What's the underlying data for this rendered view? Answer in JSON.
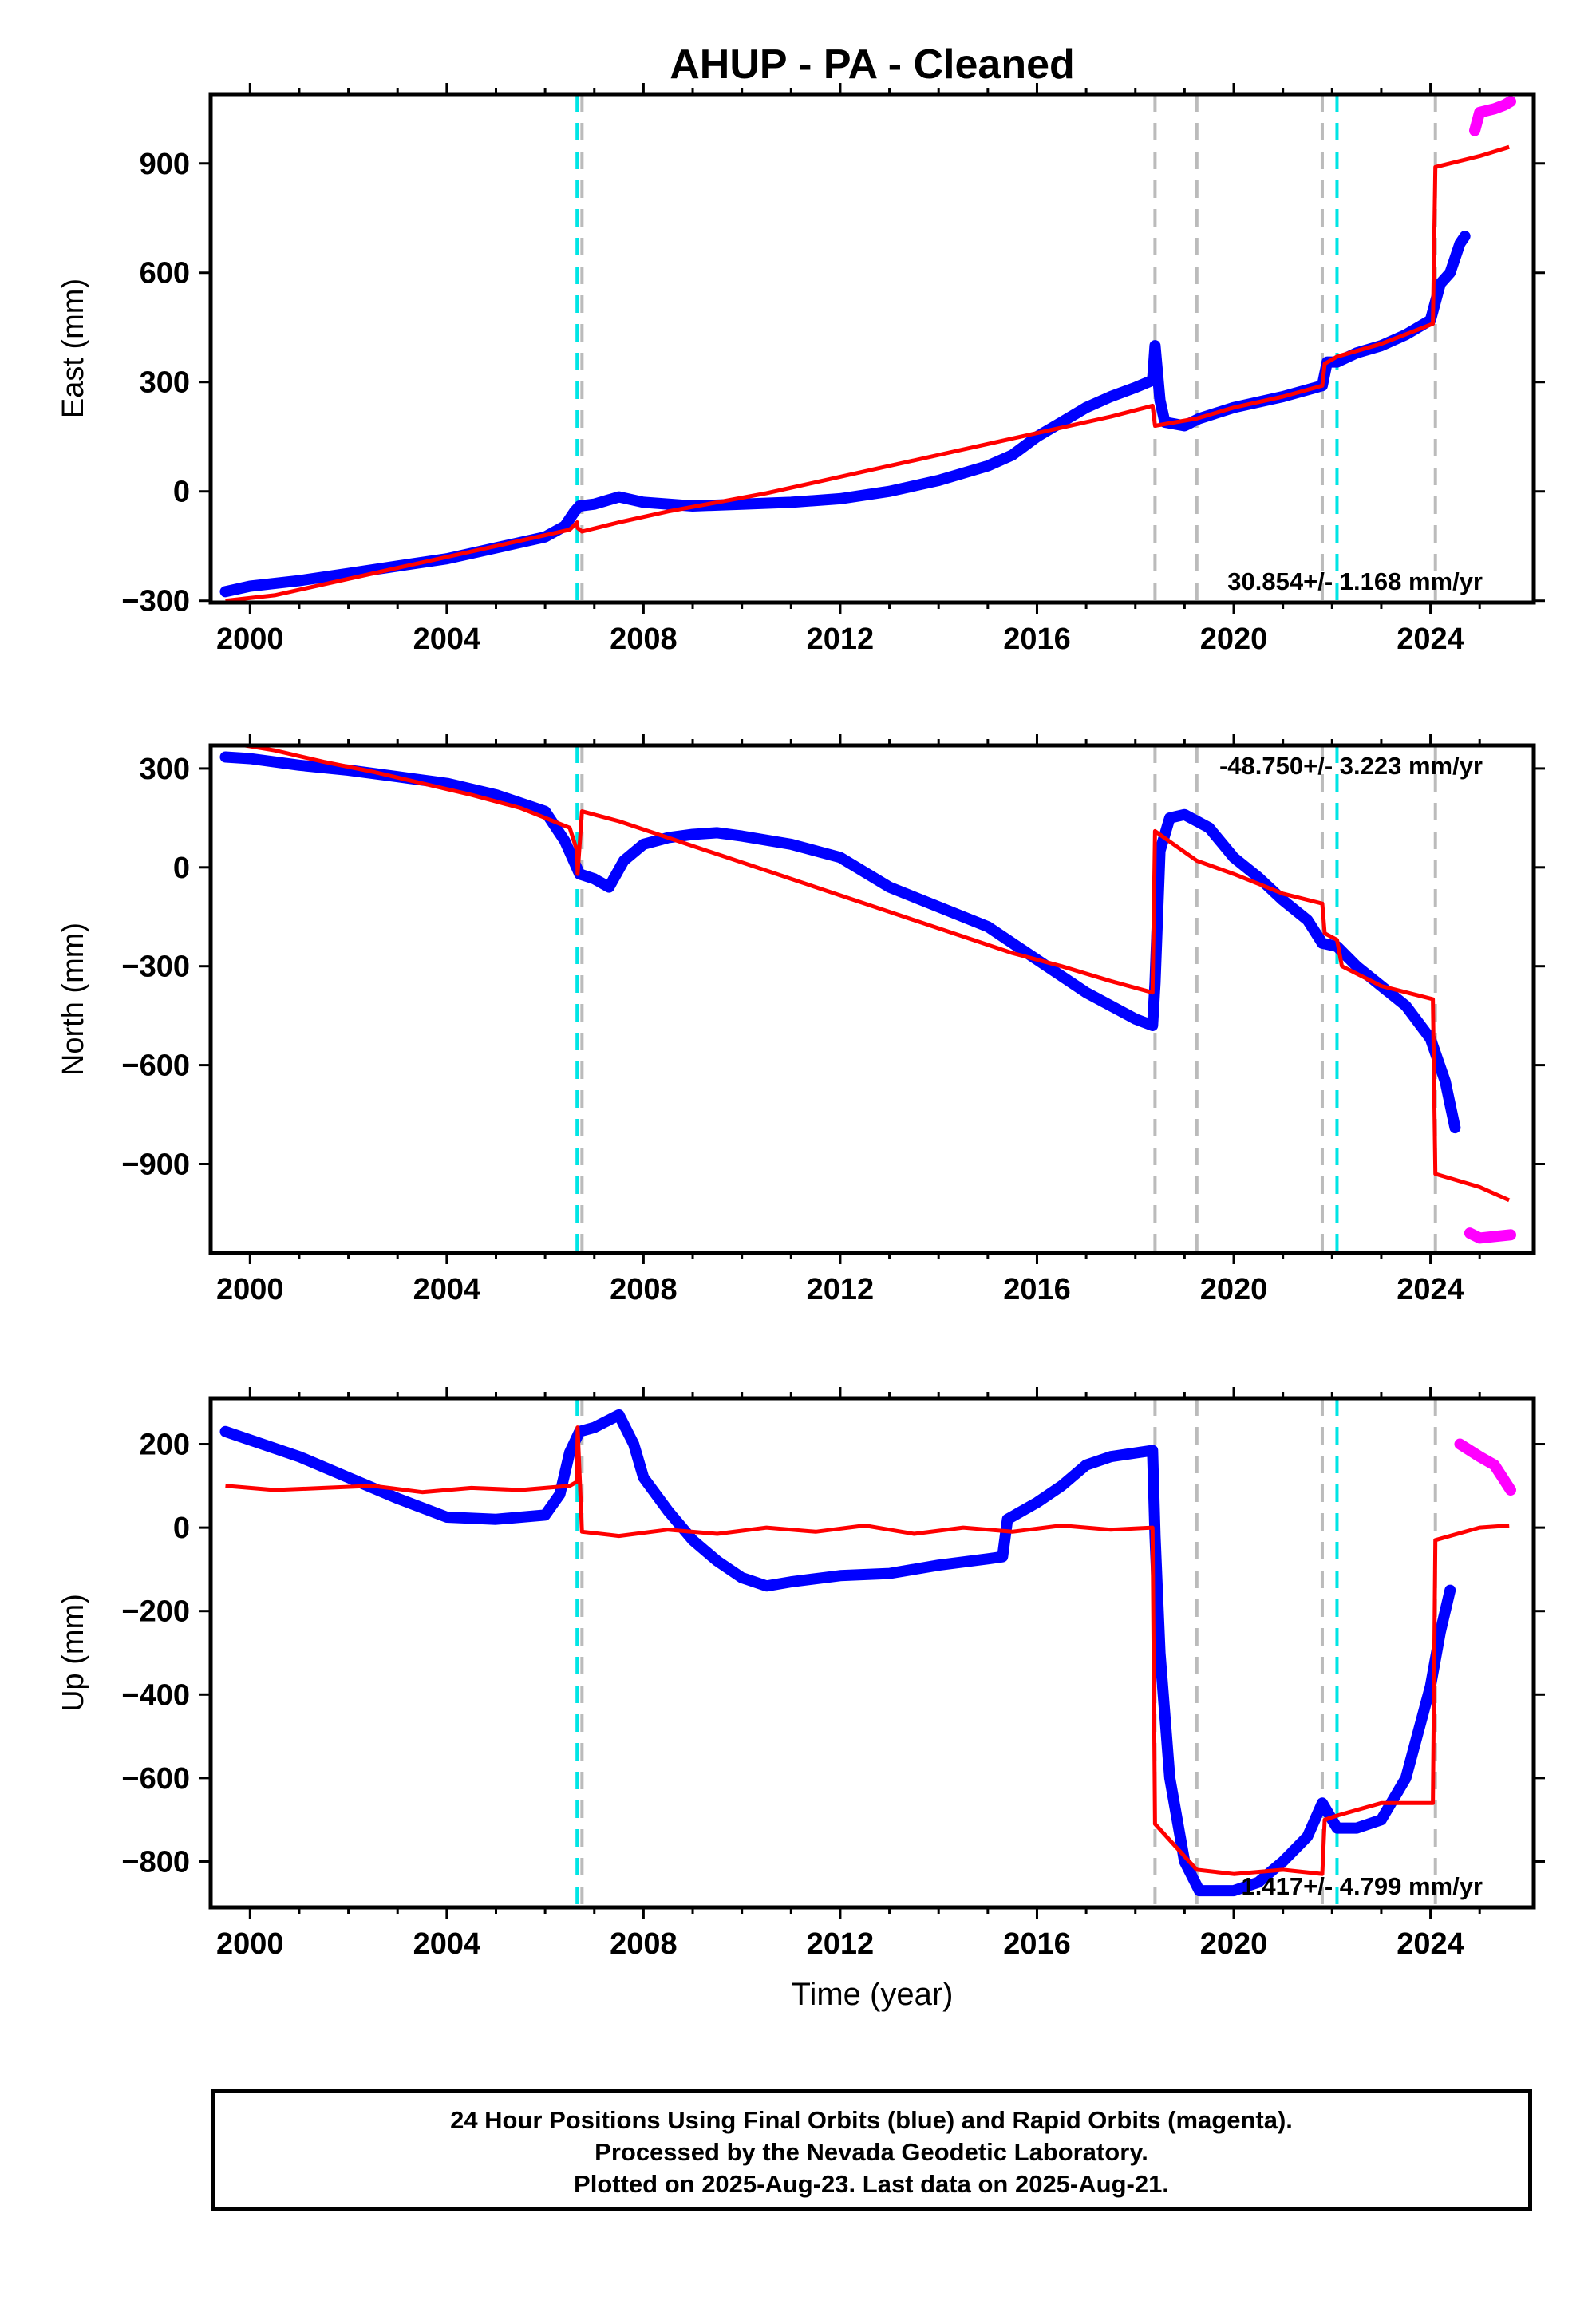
{
  "title": "AHUP  - PA - Cleaned",
  "xlabel": "Time (year)",
  "footer": {
    "line1": "24 Hour Positions Using Final Orbits (blue) and Rapid Orbits (magenta).",
    "line2": "Processed by the Nevada Geodetic Laboratory.",
    "line3": "Plotted on 2025-Aug-23. Last data on 2025-Aug-21."
  },
  "colors": {
    "final": "#0000ff",
    "rapid": "#ff00ff",
    "model": "#ff0000",
    "equipment": "#bbbbbb",
    "earthquake": "#00e5e5"
  },
  "chart_data": [
    {
      "type": "line",
      "panel": "east",
      "ylabel": "East (mm)",
      "xlim": [
        1999.2,
        2026.1
      ],
      "ylim": [
        -305,
        1090
      ],
      "xticks": [
        2000,
        2004,
        2008,
        2012,
        2016,
        2020,
        2024
      ],
      "yticks": [
        -300,
        0,
        300,
        600,
        900
      ],
      "rate": "30.854+/- 1.168 mm/yr",
      "rate_position": "bottom-right",
      "equipment_changes": [
        2006.75,
        2018.4,
        2019.25,
        2021.8,
        2024.1
      ],
      "earthquakes": [
        2006.65,
        2022.1
      ],
      "final_orbits": [
        [
          1999.5,
          -275
        ],
        [
          2000,
          -260
        ],
        [
          2001,
          -245
        ],
        [
          2002,
          -225
        ],
        [
          2003,
          -205
        ],
        [
          2004,
          -185
        ],
        [
          2005,
          -155
        ],
        [
          2006,
          -125
        ],
        [
          2006.4,
          -95
        ],
        [
          2006.6,
          -55
        ],
        [
          2006.7,
          -40
        ],
        [
          2007,
          -35
        ],
        [
          2007.5,
          -15
        ],
        [
          2008,
          -30
        ],
        [
          2009,
          -40
        ],
        [
          2010,
          -35
        ],
        [
          2011,
          -30
        ],
        [
          2012,
          -20
        ],
        [
          2013,
          0
        ],
        [
          2014,
          30
        ],
        [
          2015,
          70
        ],
        [
          2015.5,
          100
        ],
        [
          2016,
          150
        ],
        [
          2016.5,
          190
        ],
        [
          2017,
          230
        ],
        [
          2017.5,
          260
        ],
        [
          2018,
          285
        ],
        [
          2018.35,
          305
        ],
        [
          2018.4,
          400
        ],
        [
          2018.5,
          250
        ],
        [
          2018.6,
          190
        ],
        [
          2019,
          180
        ],
        [
          2019.3,
          200
        ],
        [
          2020,
          230
        ],
        [
          2021,
          260
        ],
        [
          2021.8,
          290
        ],
        [
          2021.9,
          355
        ],
        [
          2022.1,
          355
        ],
        [
          2022.5,
          380
        ],
        [
          2023,
          400
        ],
        [
          2023.5,
          430
        ],
        [
          2024,
          470
        ],
        [
          2024.2,
          570
        ],
        [
          2024.4,
          600
        ],
        [
          2024.6,
          680
        ],
        [
          2024.7,
          700
        ]
      ],
      "rapid_orbits": [
        [
          2024.9,
          990
        ],
        [
          2025,
          1040
        ],
        [
          2025.3,
          1050
        ],
        [
          2025.5,
          1060
        ],
        [
          2025.63,
          1070
        ]
      ],
      "model": [
        [
          1999.5,
          -300
        ],
        [
          2000.5,
          -285
        ],
        [
          2001.5,
          -255
        ],
        [
          2002.5,
          -225
        ],
        [
          2003.5,
          -195
        ],
        [
          2004.5,
          -165
        ],
        [
          2005.5,
          -135
        ],
        [
          2006.5,
          -105
        ],
        [
          2006.65,
          -85
        ],
        [
          2006.66,
          -100
        ],
        [
          2006.75,
          -110
        ],
        [
          2007.5,
          -85
        ],
        [
          2008.5,
          -55
        ],
        [
          2009.5,
          -30
        ],
        [
          2010.5,
          -5
        ],
        [
          2011.5,
          25
        ],
        [
          2012.5,
          55
        ],
        [
          2013.5,
          85
        ],
        [
          2014.5,
          115
        ],
        [
          2015.5,
          145
        ],
        [
          2016.5,
          175
        ],
        [
          2017.5,
          205
        ],
        [
          2018.35,
          235
        ],
        [
          2018.4,
          180
        ],
        [
          2019.25,
          200
        ],
        [
          2020,
          230
        ],
        [
          2021,
          260
        ],
        [
          2021.8,
          290
        ],
        [
          2021.85,
          350
        ],
        [
          2022.1,
          370
        ],
        [
          2023,
          405
        ],
        [
          2024.05,
          460
        ],
        [
          2024.1,
          890
        ],
        [
          2025,
          920
        ],
        [
          2025.6,
          945
        ]
      ]
    },
    {
      "type": "line",
      "panel": "north",
      "ylabel": "North (mm)",
      "xlim": [
        1999.2,
        2026.1
      ],
      "ylim": [
        -1170,
        370
      ],
      "xticks": [
        2000,
        2004,
        2008,
        2012,
        2016,
        2020,
        2024
      ],
      "yticks": [
        -900,
        -600,
        -300,
        0,
        300
      ],
      "rate": "-48.750+/- 3.223 mm/yr",
      "rate_position": "top-right",
      "equipment_changes": [
        2006.75,
        2018.4,
        2019.25,
        2021.8,
        2024.1
      ],
      "earthquakes": [
        2006.65,
        2022.1
      ],
      "final_orbits": [
        [
          1999.5,
          335
        ],
        [
          2000,
          330
        ],
        [
          2001,
          310
        ],
        [
          2002,
          295
        ],
        [
          2003,
          275
        ],
        [
          2004,
          255
        ],
        [
          2005,
          220
        ],
        [
          2006,
          170
        ],
        [
          2006.4,
          80
        ],
        [
          2006.7,
          -20
        ],
        [
          2007,
          -35
        ],
        [
          2007.3,
          -60
        ],
        [
          2007.6,
          20
        ],
        [
          2008,
          70
        ],
        [
          2008.5,
          90
        ],
        [
          2009,
          100
        ],
        [
          2009.5,
          105
        ],
        [
          2010,
          95
        ],
        [
          2011,
          70
        ],
        [
          2012,
          30
        ],
        [
          2013,
          -60
        ],
        [
          2014,
          -120
        ],
        [
          2015,
          -180
        ],
        [
          2016,
          -280
        ],
        [
          2017,
          -380
        ],
        [
          2018,
          -460
        ],
        [
          2018.35,
          -480
        ],
        [
          2018.4,
          -350
        ],
        [
          2018.5,
          50
        ],
        [
          2018.7,
          150
        ],
        [
          2019,
          160
        ],
        [
          2019.5,
          120
        ],
        [
          2020,
          30
        ],
        [
          2020.5,
          -30
        ],
        [
          2021,
          -100
        ],
        [
          2021.5,
          -160
        ],
        [
          2021.8,
          -230
        ],
        [
          2022.1,
          -240
        ],
        [
          2022.5,
          -300
        ],
        [
          2023,
          -360
        ],
        [
          2023.5,
          -420
        ],
        [
          2024,
          -520
        ],
        [
          2024.3,
          -650
        ],
        [
          2024.5,
          -790
        ]
      ],
      "rapid_orbits": [
        [
          2024.8,
          -1110
        ],
        [
          2025,
          -1125
        ],
        [
          2025.3,
          -1120
        ],
        [
          2025.63,
          -1115
        ]
      ],
      "model": [
        [
          1999.5,
          380
        ],
        [
          2000.5,
          355
        ],
        [
          2001.5,
          320
        ],
        [
          2002.5,
          290
        ],
        [
          2003.5,
          255
        ],
        [
          2004.5,
          220
        ],
        [
          2005.5,
          180
        ],
        [
          2006.5,
          120
        ],
        [
          2006.65,
          50
        ],
        [
          2006.66,
          -20
        ],
        [
          2006.75,
          170
        ],
        [
          2007.5,
          140
        ],
        [
          2008.5,
          90
        ],
        [
          2009.5,
          40
        ],
        [
          2010.5,
          -10
        ],
        [
          2011.5,
          -60
        ],
        [
          2012.5,
          -110
        ],
        [
          2013.5,
          -160
        ],
        [
          2014.5,
          -210
        ],
        [
          2015.5,
          -260
        ],
        [
          2016.5,
          -300
        ],
        [
          2017.5,
          -345
        ],
        [
          2018.35,
          -380
        ],
        [
          2018.4,
          110
        ],
        [
          2019.25,
          20
        ],
        [
          2020,
          -20
        ],
        [
          2021,
          -80
        ],
        [
          2021.8,
          -110
        ],
        [
          2021.85,
          -200
        ],
        [
          2022.1,
          -220
        ],
        [
          2022.2,
          -300
        ],
        [
          2023,
          -360
        ],
        [
          2024.05,
          -400
        ],
        [
          2024.1,
          -930
        ],
        [
          2025,
          -970
        ],
        [
          2025.6,
          -1010
        ]
      ]
    },
    {
      "type": "line",
      "panel": "up",
      "ylabel": "Up (mm)",
      "xlim": [
        1999.2,
        2026.1
      ],
      "ylim": [
        -910,
        310
      ],
      "xticks": [
        2000,
        2004,
        2008,
        2012,
        2016,
        2020,
        2024
      ],
      "yticks": [
        -800,
        -600,
        -400,
        -200,
        0,
        200
      ],
      "rate": "1.417+/- 4.799 mm/yr",
      "rate_position": "bottom-right",
      "equipment_changes": [
        2006.75,
        2018.4,
        2019.25,
        2021.8,
        2024.1
      ],
      "earthquakes": [
        2006.65,
        2022.1
      ],
      "final_orbits": [
        [
          1999.5,
          230
        ],
        [
          2000,
          210
        ],
        [
          2001,
          170
        ],
        [
          2002,
          120
        ],
        [
          2003,
          70
        ],
        [
          2004,
          25
        ],
        [
          2005,
          20
        ],
        [
          2006,
          30
        ],
        [
          2006.3,
          80
        ],
        [
          2006.5,
          180
        ],
        [
          2006.7,
          230
        ],
        [
          2007,
          240
        ],
        [
          2007.5,
          270
        ],
        [
          2007.8,
          200
        ],
        [
          2008,
          120
        ],
        [
          2008.5,
          40
        ],
        [
          2009,
          -30
        ],
        [
          2009.5,
          -80
        ],
        [
          2010,
          -120
        ],
        [
          2010.5,
          -140
        ],
        [
          2011,
          -130
        ],
        [
          2012,
          -115
        ],
        [
          2013,
          -110
        ],
        [
          2014,
          -90
        ],
        [
          2015,
          -75
        ],
        [
          2015.3,
          -70
        ],
        [
          2015.4,
          20
        ],
        [
          2016,
          60
        ],
        [
          2016.5,
          100
        ],
        [
          2017,
          150
        ],
        [
          2017.5,
          170
        ],
        [
          2018.35,
          185
        ],
        [
          2018.4,
          -20
        ],
        [
          2018.5,
          -300
        ],
        [
          2018.7,
          -600
        ],
        [
          2019,
          -800
        ],
        [
          2019.3,
          -870
        ],
        [
          2020,
          -870
        ],
        [
          2020.5,
          -850
        ],
        [
          2021,
          -800
        ],
        [
          2021.5,
          -740
        ],
        [
          2021.8,
          -660
        ],
        [
          2022.1,
          -720
        ],
        [
          2022.5,
          -720
        ],
        [
          2023,
          -700
        ],
        [
          2023.5,
          -600
        ],
        [
          2024,
          -380
        ],
        [
          2024.2,
          -250
        ],
        [
          2024.4,
          -150
        ]
      ],
      "rapid_orbits": [
        [
          2024.6,
          200
        ],
        [
          2025,
          170
        ],
        [
          2025.3,
          150
        ],
        [
          2025.63,
          90
        ]
      ],
      "model": [
        [
          1999.5,
          100
        ],
        [
          2000.5,
          90
        ],
        [
          2001.5,
          95
        ],
        [
          2002.5,
          100
        ],
        [
          2003.5,
          85
        ],
        [
          2004.5,
          95
        ],
        [
          2005.5,
          90
        ],
        [
          2006.5,
          100
        ],
        [
          2006.65,
          110
        ],
        [
          2006.66,
          240
        ],
        [
          2006.75,
          -10
        ],
        [
          2007.5,
          -20
        ],
        [
          2008.5,
          -5
        ],
        [
          2009.5,
          -15
        ],
        [
          2010.5,
          0
        ],
        [
          2011.5,
          -10
        ],
        [
          2012.5,
          5
        ],
        [
          2013.5,
          -15
        ],
        [
          2014.5,
          0
        ],
        [
          2015.5,
          -10
        ],
        [
          2016.5,
          5
        ],
        [
          2017.5,
          -5
        ],
        [
          2018.35,
          0
        ],
        [
          2018.4,
          -710
        ],
        [
          2019.25,
          -820
        ],
        [
          2020,
          -830
        ],
        [
          2021,
          -820
        ],
        [
          2021.8,
          -830
        ],
        [
          2021.85,
          -700
        ],
        [
          2022.1,
          -690
        ],
        [
          2023,
          -660
        ],
        [
          2024.05,
          -660
        ],
        [
          2024.1,
          -30
        ],
        [
          2025,
          0
        ],
        [
          2025.6,
          5
        ]
      ]
    }
  ]
}
